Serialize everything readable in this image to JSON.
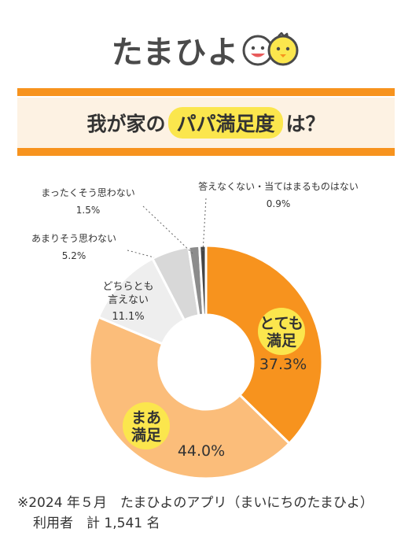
{
  "logo": {
    "text": "たまひよ"
  },
  "title": {
    "prefix": "我が家の",
    "highlight": "パパ満足度",
    "suffix": "は？"
  },
  "chart_data": {
    "type": "pie",
    "categories": [
      "とても満足",
      "まあ満足",
      "どちらとも言えない",
      "あまりそう思わない",
      "まったくそう思わない",
      "答えなくない・当てはまるものはない"
    ],
    "values": [
      37.3,
      44.0,
      11.1,
      5.2,
      1.5,
      0.9
    ],
    "slices": [
      {
        "label_lines": [
          "とても",
          "満足"
        ],
        "value_text": "37.3%",
        "color": "#f7931e"
      },
      {
        "label_lines": [
          "まあ",
          "満足"
        ],
        "value_text": "44.0%",
        "color": "#fbbd7a"
      },
      {
        "label_lines": [
          "どちらとも",
          "言えない"
        ],
        "value_text": "11.1%",
        "color": "#eeeeee"
      },
      {
        "label_lines": [
          "あまりそう思わない"
        ],
        "value_text": "5.2%",
        "color": "#d8d8d8"
      },
      {
        "label_lines": [
          "まったくそう思わない"
        ],
        "value_text": "1.5%",
        "color": "#8c8c8c"
      },
      {
        "label_lines": [
          "答えなくない・当てはまるものはない"
        ],
        "value_text": "0.9%",
        "color": "#454545"
      }
    ]
  },
  "footnote": {
    "line1": "※2024 年５月　たまひよのアプリ（まいにちのたまひよ）",
    "line2": "利用者　計 1,541 名"
  }
}
